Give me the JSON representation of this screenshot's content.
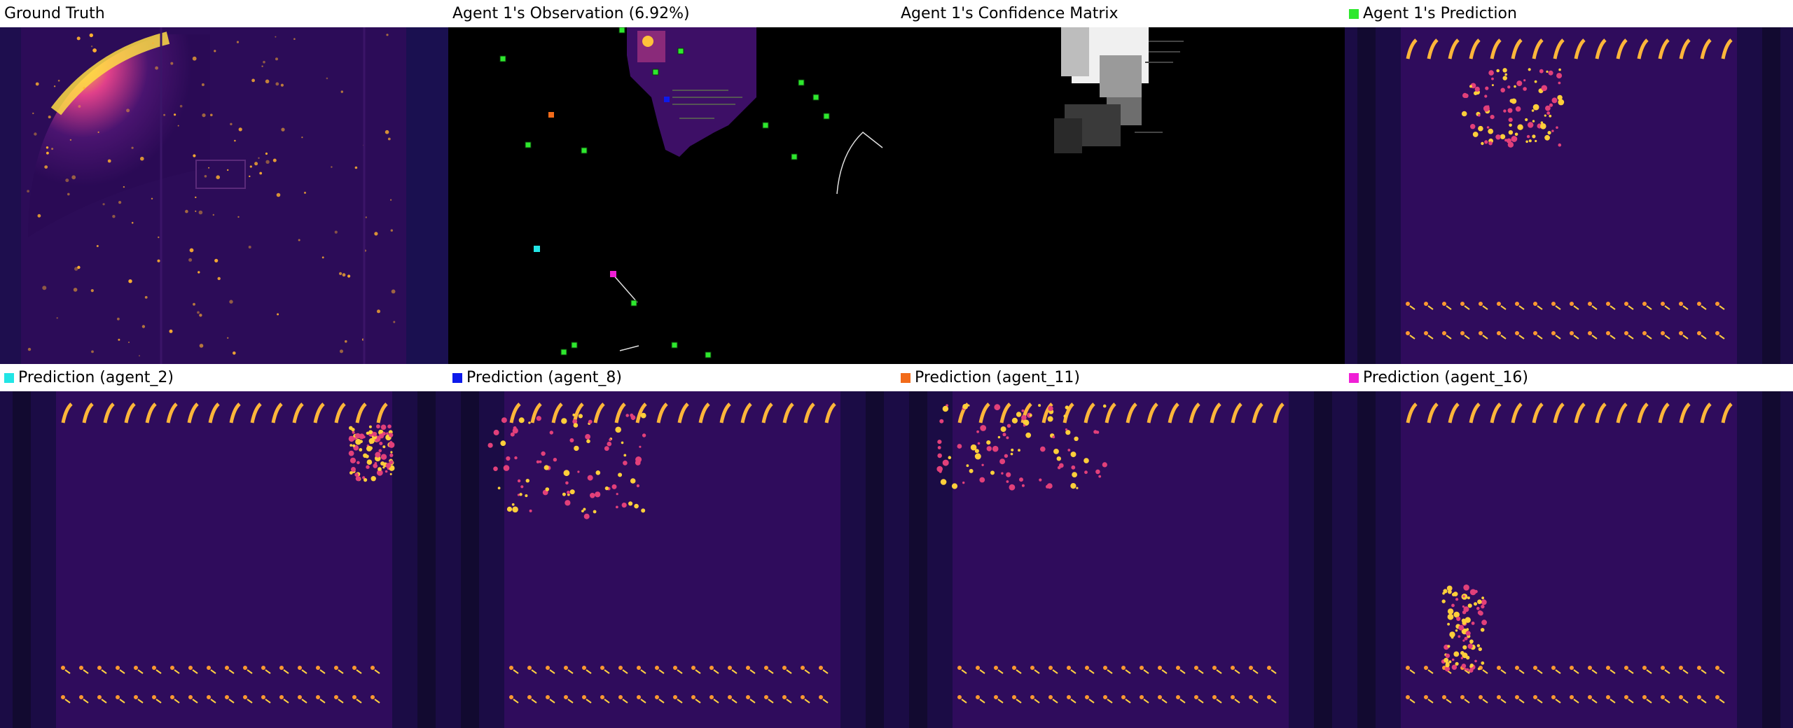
{
  "colors": {
    "agent_1": "#2ee82e",
    "agent_2": "#22e5e5",
    "agent_8": "#0d1aeb",
    "agent_11": "#f26b1a",
    "agent_16": "#f01fd6",
    "heat_low": "#2a0a55",
    "heat_mid": "#c0128a",
    "heat_high": "#ffd33a"
  },
  "panels": [
    {
      "id": "ground-truth",
      "title": "Ground Truth",
      "swatch": ""
    },
    {
      "id": "observation",
      "title": "Agent 1's Observation (6.92%)",
      "swatch": ""
    },
    {
      "id": "confidence",
      "title": "Agent 1's Confidence Matrix",
      "swatch": ""
    },
    {
      "id": "agent1-pred",
      "title": "Agent 1's Prediction",
      "swatch": "agent_1"
    },
    {
      "id": "agent2-pred",
      "title": "Prediction (agent_2)",
      "swatch": "agent_2"
    },
    {
      "id": "agent8-pred",
      "title": "Prediction (agent_8)",
      "swatch": "agent_8"
    },
    {
      "id": "agent11-pred",
      "title": "Prediction (agent_11)",
      "swatch": "agent_11"
    },
    {
      "id": "agent16-pred",
      "title": "Prediction (agent_16)",
      "swatch": "agent_16"
    }
  ]
}
